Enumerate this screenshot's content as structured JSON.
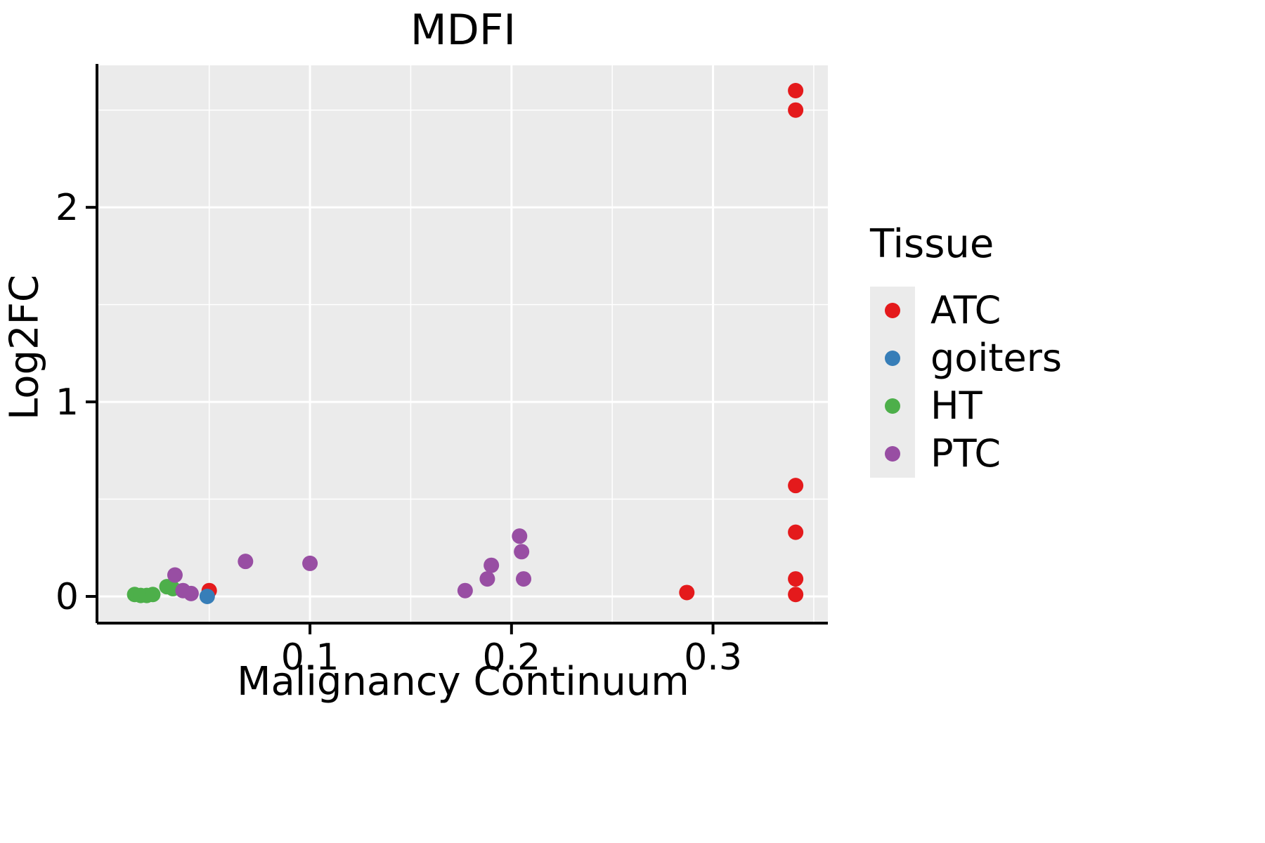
{
  "chart_data": {
    "type": "scatter",
    "title": "MDFI",
    "xlabel": "Malignancy Continuum",
    "ylabel": "Log2FC",
    "legend_title": "Tissue",
    "xlim": [
      -0.005,
      0.357
    ],
    "ylim": [
      -0.13,
      2.73
    ],
    "x_ticks": [
      0.1,
      0.2,
      0.3
    ],
    "y_ticks": [
      0,
      1,
      2
    ],
    "x_minor_ticks": [
      0.05,
      0.15,
      0.25,
      0.35
    ],
    "y_minor_ticks": [
      0.5,
      1.5,
      2.5
    ],
    "panel_background": "#EBEBEB",
    "gridline_color": "#FFFFFF",
    "axis_color": "#000000",
    "grid": "on",
    "legend_position": "right",
    "series": [
      {
        "name": "ATC",
        "color": "#E41A1C",
        "points": [
          [
            0.341,
            2.6
          ],
          [
            0.341,
            2.5
          ],
          [
            0.341,
            0.57
          ],
          [
            0.341,
            0.33
          ],
          [
            0.341,
            0.09
          ],
          [
            0.341,
            0.01
          ],
          [
            0.287,
            0.02
          ],
          [
            0.05,
            0.03
          ]
        ]
      },
      {
        "name": "goiters",
        "color": "#377EB8",
        "points": [
          [
            0.049,
            0.0
          ]
        ]
      },
      {
        "name": "HT",
        "color": "#4DAF4A",
        "points": [
          [
            0.013,
            0.01
          ],
          [
            0.016,
            0.005
          ],
          [
            0.019,
            0.005
          ],
          [
            0.022,
            0.01
          ],
          [
            0.029,
            0.05
          ],
          [
            0.032,
            0.04
          ]
        ]
      },
      {
        "name": "PTC",
        "color": "#984EA3",
        "points": [
          [
            0.033,
            0.11
          ],
          [
            0.037,
            0.03
          ],
          [
            0.041,
            0.015
          ],
          [
            0.068,
            0.18
          ],
          [
            0.1,
            0.17
          ],
          [
            0.177,
            0.03
          ],
          [
            0.19,
            0.16
          ],
          [
            0.188,
            0.09
          ],
          [
            0.204,
            0.31
          ],
          [
            0.205,
            0.23
          ],
          [
            0.206,
            0.09
          ]
        ]
      }
    ]
  }
}
